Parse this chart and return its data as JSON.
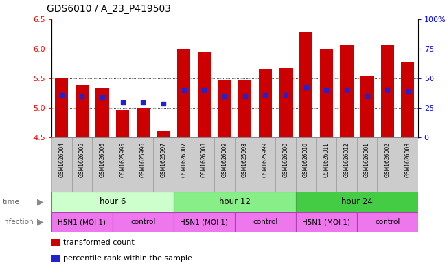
{
  "title": "GDS6010 / A_23_P419503",
  "samples": [
    "GSM1626004",
    "GSM1626005",
    "GSM1626006",
    "GSM1625995",
    "GSM1625996",
    "GSM1625997",
    "GSM1626007",
    "GSM1626008",
    "GSM1626009",
    "GSM1625998",
    "GSM1625999",
    "GSM1626000",
    "GSM1626010",
    "GSM1626011",
    "GSM1626012",
    "GSM1626001",
    "GSM1626002",
    "GSM1626003"
  ],
  "bar_values": [
    5.5,
    5.38,
    5.34,
    4.97,
    5.0,
    4.62,
    6.0,
    5.95,
    5.46,
    5.46,
    5.65,
    5.67,
    6.28,
    6.0,
    6.06,
    5.55,
    6.05,
    5.78
  ],
  "percentile_values": [
    5.22,
    5.2,
    5.18,
    5.1,
    5.1,
    5.07,
    5.3,
    5.3,
    5.2,
    5.2,
    5.22,
    5.22,
    5.35,
    5.3,
    5.3,
    5.2,
    5.3,
    5.28
  ],
  "ymin": 4.5,
  "ymax": 6.5,
  "yticks": [
    4.5,
    5.0,
    5.5,
    6.0,
    6.5
  ],
  "y2ticks": [
    0,
    25,
    50,
    75,
    100
  ],
  "y2labels": [
    "0",
    "25",
    "50",
    "75",
    "100%"
  ],
  "bar_color": "#cc0000",
  "dot_color": "#2222cc",
  "bar_width": 0.65,
  "bg_color": "#ffffff",
  "sample_box_color": "#cccccc",
  "time_group_colors": [
    "#ccffcc",
    "#88ee88",
    "#44cc44"
  ],
  "time_groups": [
    {
      "label": "hour 6",
      "start": 0,
      "end": 5
    },
    {
      "label": "hour 12",
      "start": 6,
      "end": 11
    },
    {
      "label": "hour 24",
      "start": 12,
      "end": 17
    }
  ],
  "infection_groups": [
    {
      "label": "H5N1 (MOI 1)",
      "start": 0,
      "end": 2
    },
    {
      "label": "control",
      "start": 3,
      "end": 5
    },
    {
      "label": "H5N1 (MOI 1)",
      "start": 6,
      "end": 8
    },
    {
      "label": "control",
      "start": 9,
      "end": 11
    },
    {
      "label": "H5N1 (MOI 1)",
      "start": 12,
      "end": 14
    },
    {
      "label": "control",
      "start": 15,
      "end": 17
    }
  ],
  "infection_color": "#ee77ee",
  "legend_items": [
    {
      "label": "transformed count",
      "color": "#cc0000"
    },
    {
      "label": "percentile rank within the sample",
      "color": "#2222cc"
    }
  ]
}
